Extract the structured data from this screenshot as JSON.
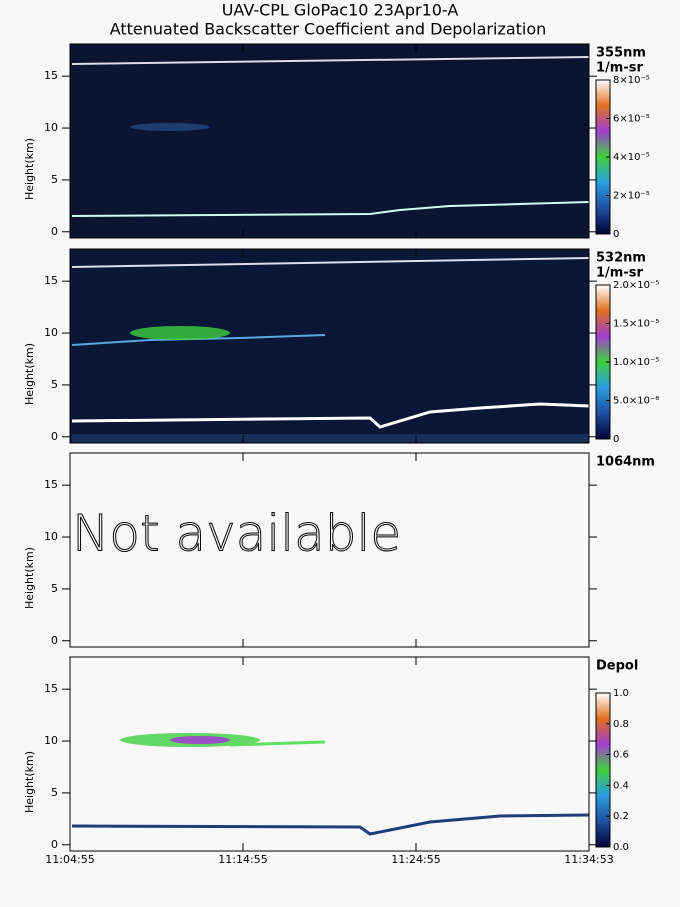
{
  "chart_data": {
    "type": "curtain",
    "title": "UAV-CPL GloPac10 23Apr10-A",
    "subtitle": "Attenuated Backscatter Coefficient and Depolarization",
    "xticks": [
      "11:04:55",
      "11:14:55",
      "11:24:55",
      "11:34:53"
    ],
    "colormap": [
      "#000033",
      "#1f4fa0",
      "#2a9ee0",
      "#3fcf3f",
      "#a040d0",
      "#e07020",
      "#ffffff"
    ],
    "panels": [
      {
        "label": "355nm",
        "unit": "1/m-sr",
        "ylabel": "Height(km)",
        "ylim": [
          -0.6,
          18.1
        ],
        "yticks": [
          0,
          5,
          10,
          15
        ],
        "clim": [
          0,
          8e-05
        ],
        "cticks": [
          0,
          {
            "value": 2e-05,
            "label": "2×10⁻⁵"
          },
          {
            "value": 4e-05,
            "label": "4×10⁻⁵"
          },
          {
            "value": 6e-05,
            "label": "6×10⁻⁵"
          },
          {
            "value": 8e-05,
            "label": "8×10⁻⁵"
          }
        ]
      },
      {
        "label": "532nm",
        "unit": "1/m-sr",
        "ylabel": "Height(km)",
        "ylim": [
          -0.6,
          18.1
        ],
        "yticks": [
          0,
          5,
          10,
          15
        ],
        "clim": [
          0,
          2e-05
        ],
        "cticks": [
          0,
          {
            "value": 5e-06,
            "label": "5.0×10⁻⁶"
          },
          {
            "value": 1e-05,
            "label": "1.0×10⁻⁵"
          },
          {
            "value": 1.5e-05,
            "label": "1.5×10⁻⁵"
          },
          {
            "value": 2e-05,
            "label": "2.0×10⁻⁵"
          }
        ]
      },
      {
        "label": "1064nm",
        "ylabel": "Height(km)",
        "ylim": [
          -0.6,
          18.1
        ],
        "yticks": [
          0,
          5,
          10,
          15
        ],
        "annotation": "Not available"
      },
      {
        "label": "Depol",
        "ylabel": "Height(km)",
        "ylim": [
          -0.6,
          18.1
        ],
        "yticks": [
          0,
          5,
          10,
          15
        ],
        "clim": [
          0,
          1
        ],
        "cticks": [
          {
            "value": 0,
            "label": "0.0"
          },
          {
            "value": 0.2,
            "label": "0.2"
          },
          {
            "value": 0.4,
            "label": "0.4"
          },
          {
            "value": 0.6,
            "label": "0.6"
          },
          {
            "value": 0.8,
            "label": "0.8"
          },
          {
            "value": 1,
            "label": "1.0"
          }
        ]
      }
    ]
  }
}
